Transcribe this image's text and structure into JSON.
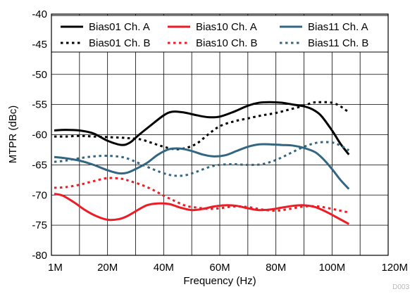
{
  "chart_data": {
    "type": "line",
    "title": "",
    "xlabel": "Frequency (Hz)",
    "ylabel": "MTPR (dBc)",
    "watermark": "D003",
    "xlim": [
      0,
      120
    ],
    "ylim": [
      -80,
      -40
    ],
    "x_ticks": [
      0,
      20,
      40,
      60,
      80,
      100,
      120
    ],
    "x_tick_labels": [
      "1M",
      "20M",
      "40M",
      "60M",
      "80M",
      "100M",
      "120M"
    ],
    "y_ticks": [
      -40,
      -45,
      -50,
      -55,
      -60,
      -65,
      -70,
      -75,
      -80
    ],
    "y_tick_labels": [
      "-40",
      "-45",
      "-50",
      "-55",
      "-60",
      "-65",
      "-70",
      "-75",
      "-80"
    ],
    "grid": true,
    "legend_position": "top",
    "series": [
      {
        "name": "Bias01 Ch. A",
        "color": "#000000",
        "dash": "solid",
        "x": [
          1,
          5,
          10,
          15,
          20,
          25,
          28,
          31,
          35,
          40,
          43,
          47,
          52,
          56,
          60,
          65,
          70,
          74,
          78,
          82,
          86,
          90,
          93,
          96,
          100,
          103,
          106
        ],
        "y": [
          -59.3,
          -59.2,
          -59.3,
          -59.8,
          -61.0,
          -61.7,
          -61.3,
          -60.1,
          -58.6,
          -56.8,
          -56.2,
          -56.3,
          -56.8,
          -57.1,
          -57.0,
          -56.2,
          -55.2,
          -54.7,
          -54.6,
          -54.7,
          -55.0,
          -55.3,
          -55.8,
          -56.8,
          -59.3,
          -61.5,
          -63.3
        ]
      },
      {
        "name": "Bias01 Ch. B",
        "color": "#000000",
        "dash": "dotted",
        "x": [
          1,
          5,
          10,
          15,
          20,
          25,
          28,
          32,
          36,
          40,
          44,
          48,
          52,
          56,
          60,
          65,
          70,
          75,
          80,
          85,
          90,
          93,
          96,
          100,
          103,
          106
        ],
        "y": [
          -60.3,
          -60.3,
          -60.2,
          -60.3,
          -60.4,
          -60.5,
          -60.6,
          -60.8,
          -61.4,
          -62.0,
          -62.4,
          -62.2,
          -61.4,
          -59.9,
          -58.6,
          -57.8,
          -57.3,
          -56.8,
          -56.4,
          -55.8,
          -55.2,
          -54.7,
          -54.6,
          -54.7,
          -55.3,
          -56.3
        ]
      },
      {
        "name": "Bias10 Ch. A",
        "color": "#ee1c25",
        "dash": "solid",
        "x": [
          1,
          4,
          8,
          12,
          16,
          20,
          24,
          27,
          30,
          34,
          38,
          42,
          46,
          50,
          54,
          58,
          62,
          66,
          70,
          74,
          78,
          82,
          86,
          90,
          94,
          98,
          102,
          106
        ],
        "y": [
          -69.8,
          -70.1,
          -71.2,
          -72.5,
          -73.5,
          -74.1,
          -74.0,
          -73.5,
          -72.7,
          -71.7,
          -71.4,
          -71.5,
          -72.1,
          -72.5,
          -72.3,
          -71.9,
          -71.7,
          -71.8,
          -72.2,
          -72.5,
          -72.4,
          -72.1,
          -71.8,
          -71.7,
          -72.0,
          -72.8,
          -73.8,
          -74.8
        ]
      },
      {
        "name": "Bias10 Ch. B",
        "color": "#ee1c25",
        "dash": "dotted",
        "x": [
          1,
          5,
          10,
          15,
          20,
          25,
          28,
          32,
          36,
          40,
          44,
          48,
          52,
          56,
          60,
          65,
          70,
          75,
          80,
          85,
          90,
          95,
          100,
          103,
          106
        ],
        "y": [
          -68.8,
          -68.7,
          -68.3,
          -67.7,
          -67.2,
          -67.3,
          -67.7,
          -68.3,
          -69.1,
          -70.1,
          -71.0,
          -71.8,
          -72.1,
          -72.3,
          -72.2,
          -71.9,
          -72.0,
          -72.4,
          -72.6,
          -72.3,
          -71.9,
          -71.9,
          -72.3,
          -72.6,
          -72.9
        ]
      },
      {
        "name": "Bias11 Ch. A",
        "color": "#336680",
        "dash": "solid",
        "x": [
          1,
          5,
          10,
          15,
          20,
          24,
          27,
          30,
          34,
          38,
          42,
          46,
          50,
          54,
          58,
          62,
          66,
          70,
          74,
          78,
          82,
          86,
          90,
          94,
          97,
          100,
          103,
          106
        ],
        "y": [
          -63.7,
          -63.9,
          -64.3,
          -65.0,
          -65.9,
          -66.4,
          -66.3,
          -65.7,
          -64.7,
          -63.3,
          -62.4,
          -62.3,
          -62.7,
          -63.3,
          -63.6,
          -63.4,
          -62.7,
          -62.0,
          -61.6,
          -61.6,
          -61.7,
          -61.8,
          -62.2,
          -62.9,
          -64.1,
          -65.7,
          -67.5,
          -69.0
        ]
      },
      {
        "name": "Bias11 Ch. B",
        "color": "#336680",
        "dash": "dotted",
        "x": [
          1,
          5,
          10,
          15,
          20,
          25,
          28,
          31,
          35,
          40,
          44,
          48,
          52,
          56,
          60,
          65,
          70,
          75,
          80,
          85,
          90,
          95,
          100,
          103,
          106
        ],
        "y": [
          -64.5,
          -64.3,
          -63.9,
          -63.6,
          -63.5,
          -63.7,
          -64.1,
          -64.7,
          -65.5,
          -66.4,
          -66.8,
          -66.7,
          -66.1,
          -65.4,
          -65.0,
          -64.9,
          -65.0,
          -64.9,
          -64.2,
          -63.1,
          -62.0,
          -61.3,
          -61.3,
          -61.8,
          -62.6
        ]
      }
    ]
  }
}
